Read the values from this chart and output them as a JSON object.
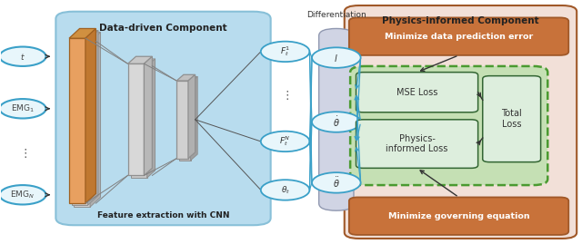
{
  "fig_width": 6.4,
  "fig_height": 2.69,
  "dpi": 100,
  "title_physics": "Physics-informed Component",
  "title_data": "Data-driven Component",
  "label_cnn": "Feature extraction with CNN",
  "label_diff": "Differentiation",
  "box_minimize_top": "Minimize data prediction error",
  "box_minimize_bot": "Minimize governing equation",
  "box_mse": "MSE Loss",
  "box_physics": "Physics-\ninformed Loss",
  "box_total": "Total\nLoss",
  "blue_bg": "#b8dcee",
  "pink_bg": "#f2e0d8",
  "green_bg": "#c5e0b4",
  "diff_bg": "#d0d4e4",
  "orange_fc": "#c8723a",
  "orange_ec": "#a05828",
  "circle_fc": "#e8f6fb",
  "circle_ec": "#3aa0c8",
  "gray1": "#c8c8c8",
  "gray2": "#b8b8b8",
  "gray3": "#d0d0d0",
  "orange_cnn": "#e8a060"
}
